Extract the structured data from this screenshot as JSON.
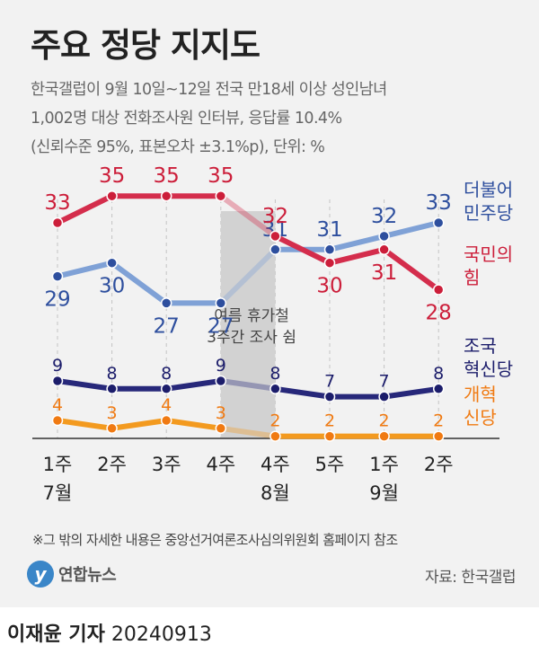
{
  "title": "주요 정당 지지도",
  "subtitle": [
    "한국갤럽이 9월 10일~12일 전국 만18세 이상 성인남녀",
    "1,002명 대상 전화조사원 인터뷰, 응답률 10.4%",
    "(신뢰수준 95%, 표본오차 ±3.1%p), 단위: %"
  ],
  "chart_data": {
    "type": "line",
    "x": [
      "7월 1주",
      "7월 2주",
      "7월 3주",
      "7월 4주",
      "8월 4주",
      "8월 5주",
      "9월 1주",
      "9월 2주"
    ],
    "x_tick_top": [
      "1주",
      "2주",
      "3주",
      "4주",
      "4주",
      "5주",
      "1주",
      "2주"
    ],
    "month_labels": [
      {
        "label": "7월",
        "at_index": 0
      },
      {
        "label": "8월",
        "at_index": 4
      },
      {
        "label": "9월",
        "at_index": 6
      }
    ],
    "gap_annotation": "여름 휴가철\n3주간 조사 쉼",
    "gap_between": [
      3,
      4
    ],
    "series": [
      {
        "name": "더불어\n민주당",
        "color": "#2e4f9e",
        "line_color": "#7fa1d6",
        "values": [
          29,
          30,
          27,
          27,
          31,
          31,
          32,
          33
        ]
      },
      {
        "name": "국민의\n힘",
        "color": "#cc1e3a",
        "line_color": "#d42d4c",
        "values": [
          33,
          35,
          35,
          35,
          32,
          30,
          31,
          28
        ]
      },
      {
        "name": "조국\n혁신당",
        "color": "#1c1d6b",
        "line_color": "#27287a",
        "values": [
          9,
          8,
          8,
          9,
          8,
          7,
          7,
          8
        ]
      },
      {
        "name": "개혁\n신당",
        "color": "#f07a12",
        "line_color": "#f39a1f",
        "values": [
          4,
          3,
          4,
          3,
          2,
          2,
          2,
          2
        ]
      }
    ]
  },
  "footnote": "※그 밖의 자세한 내용은 중앙선거여론조사심의위원회 홈페이지 참조",
  "logo": {
    "mark": "y",
    "text": "연합뉴스"
  },
  "source": "자료: 한국갤럽",
  "byline": {
    "name": "이재윤 기자",
    "date": "20240913"
  }
}
